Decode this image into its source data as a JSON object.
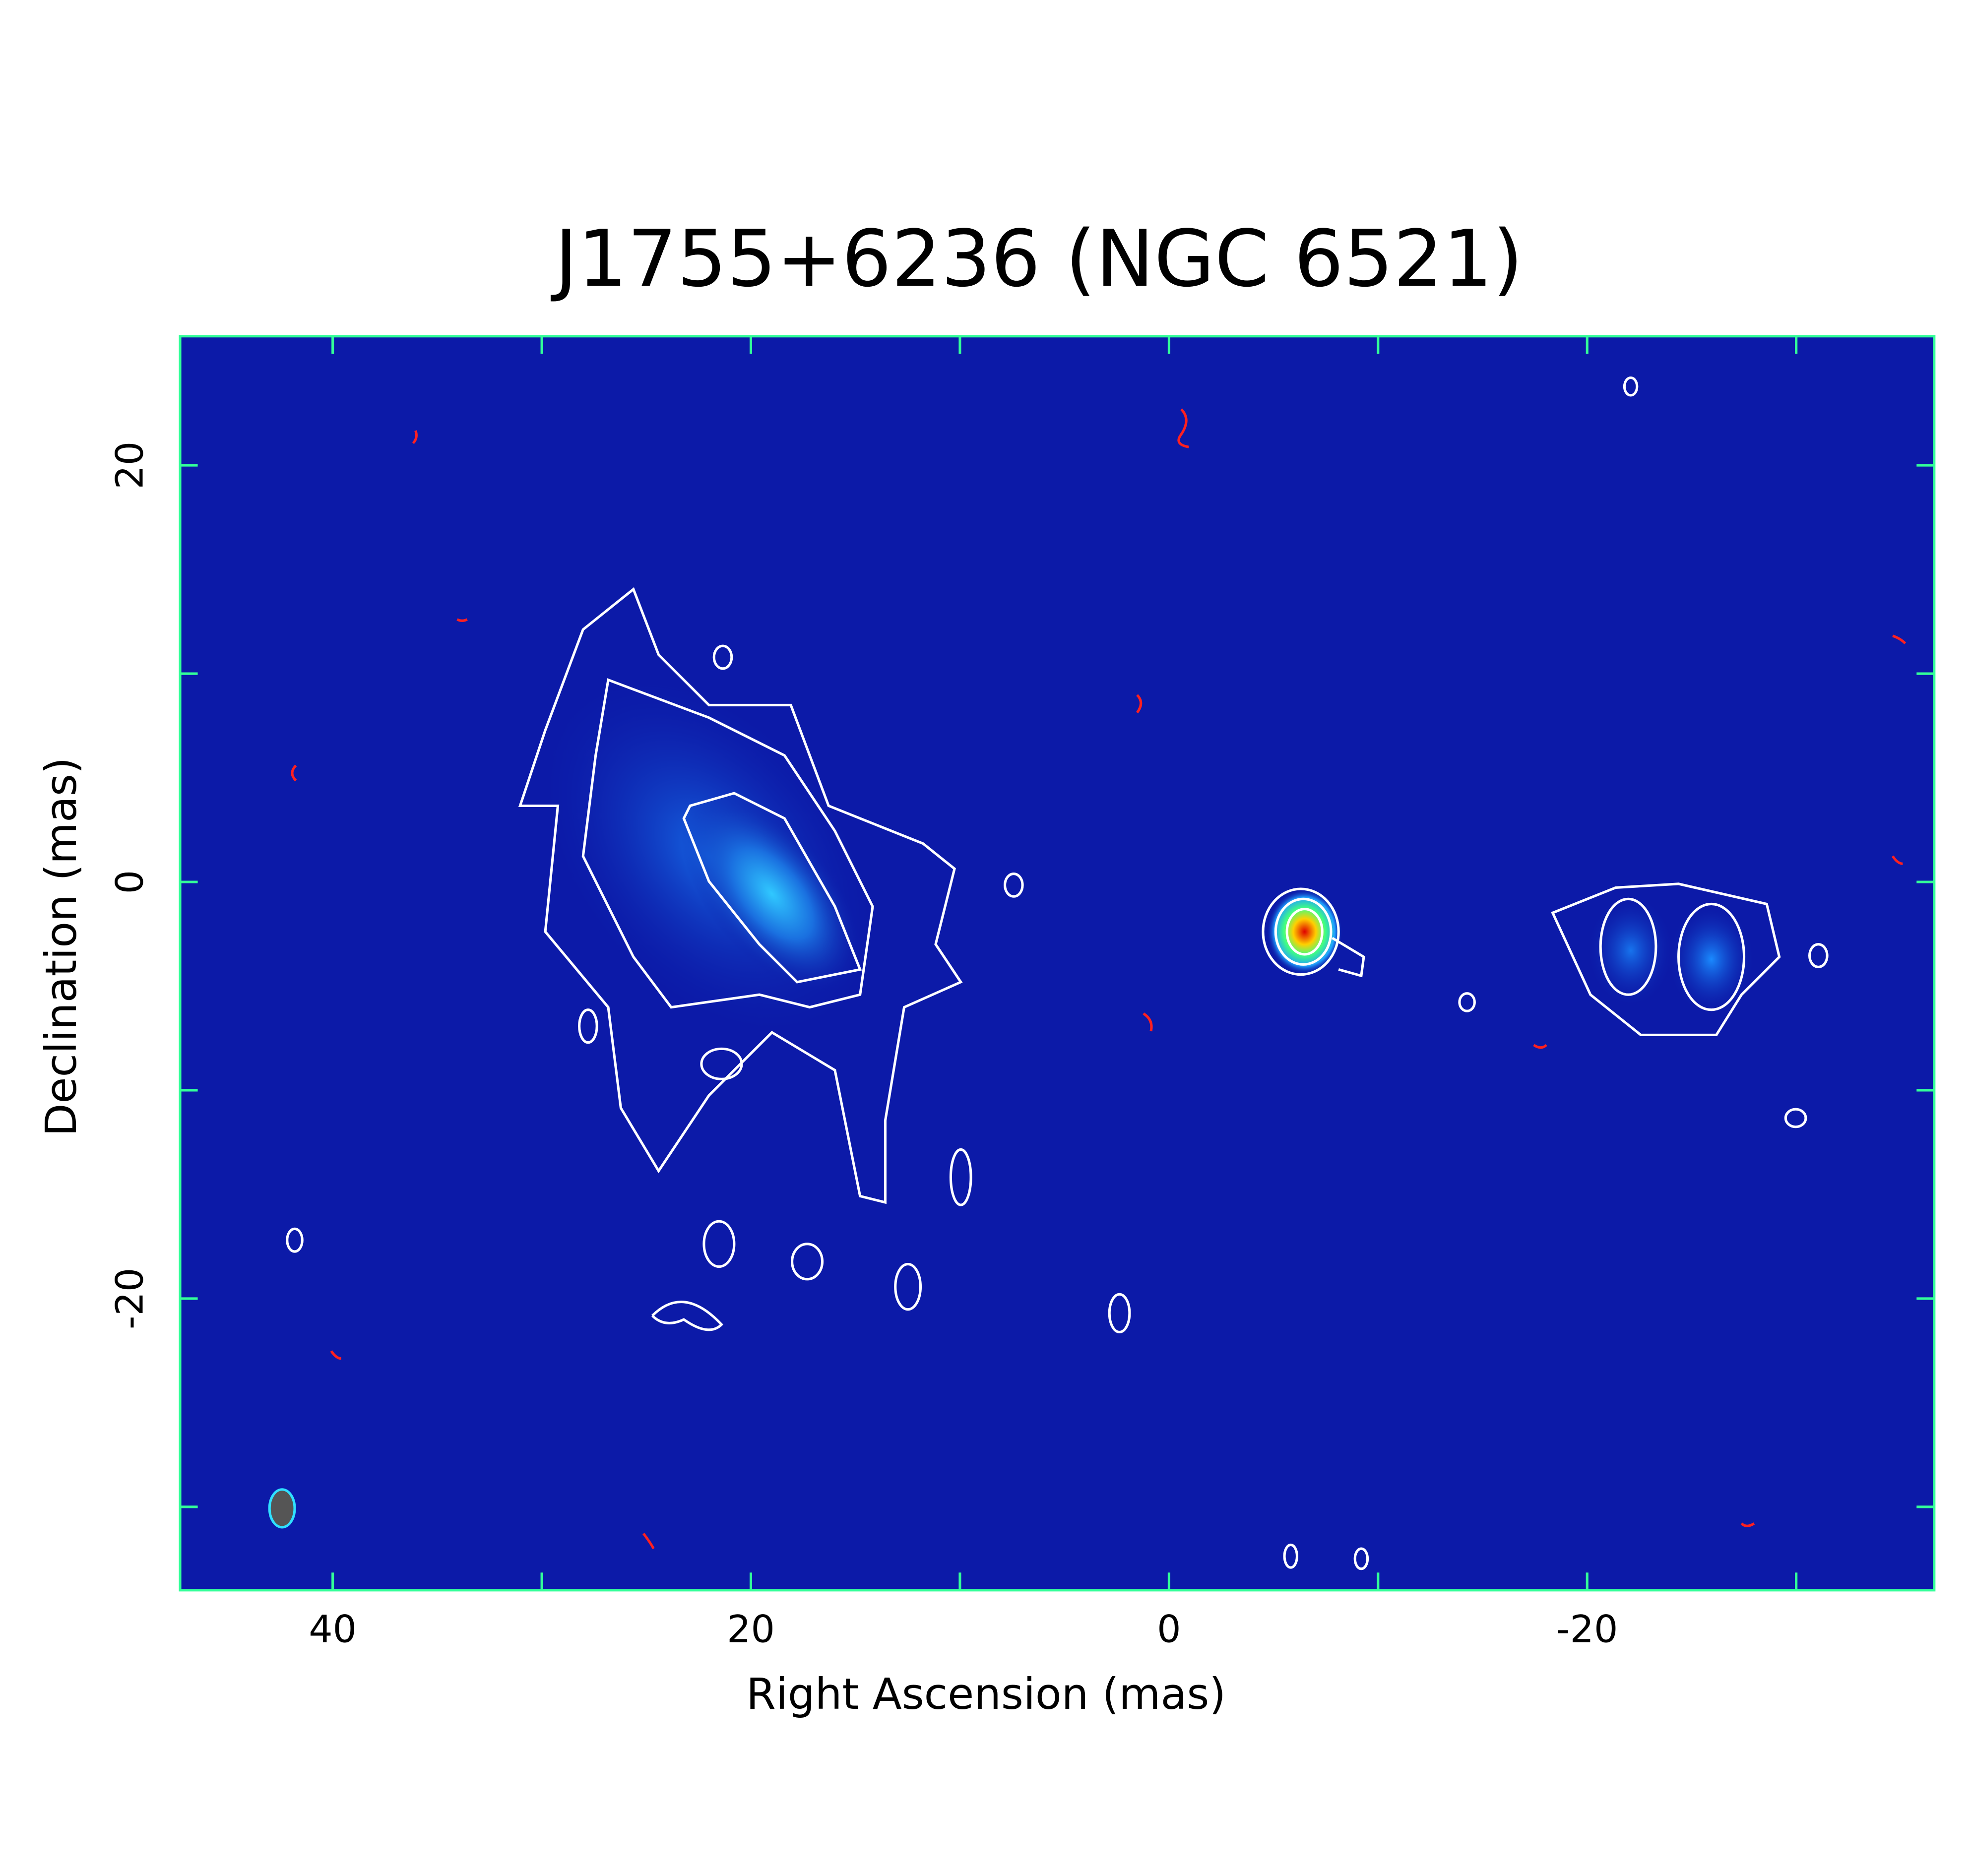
{
  "chart_data": {
    "type": "image",
    "title": "J1755+6236 (NGC 6521)",
    "x_label": "Right Ascension (mas)",
    "y_label": "Declination (mas)",
    "xlim": [
      47.3,
      -36.6
    ],
    "ylim": [
      -34.0,
      26.2
    ],
    "xticks": [
      40,
      20,
      0,
      -20
    ],
    "yticks": [
      20,
      0,
      -20
    ],
    "xminorticks": [
      30,
      10,
      -10,
      -30
    ],
    "yminorticks": [
      10,
      -10,
      -30
    ],
    "frame_color": "#33ff99"
  }
}
